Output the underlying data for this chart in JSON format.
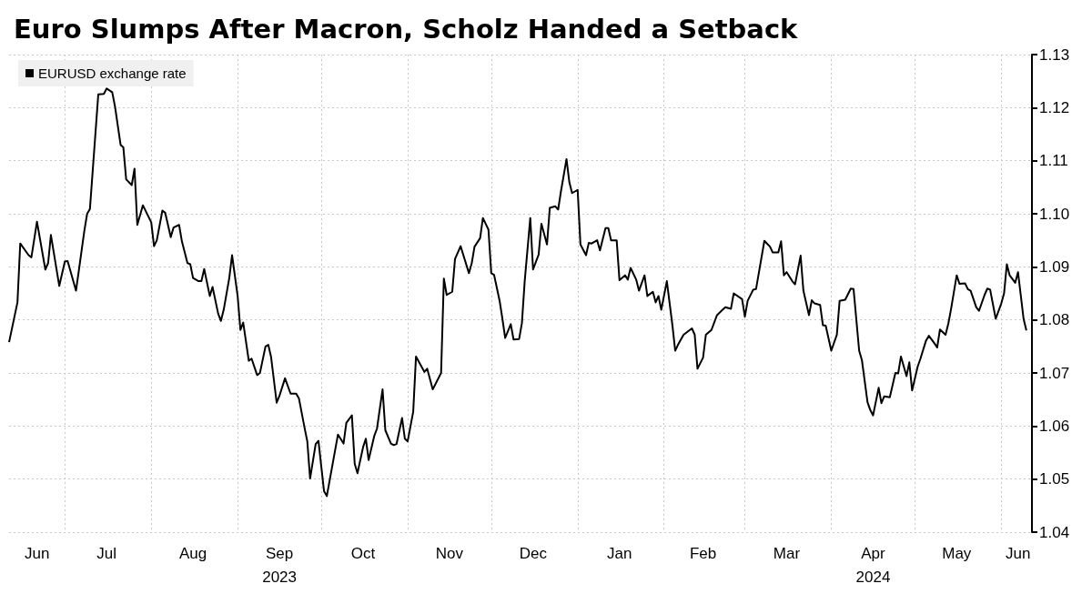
{
  "chart_data": {
    "type": "line",
    "title": "Euro Slumps After Macron, Scholz Handed a Setback",
    "x": [
      "2023-06-11",
      "2023-06-14",
      "2023-06-15",
      "2023-06-18",
      "2023-06-19",
      "2023-06-21",
      "2023-06-24",
      "2023-06-25",
      "2023-06-26",
      "2023-06-29",
      "2023-07-01",
      "2023-07-02",
      "2023-07-05",
      "2023-07-06",
      "2023-07-08",
      "2023-07-09",
      "2023-07-10",
      "2023-07-13",
      "2023-07-15",
      "2023-07-16",
      "2023-07-18",
      "2023-07-19",
      "2023-07-21",
      "2023-07-22",
      "2023-07-23",
      "2023-07-25",
      "2023-07-26",
      "2023-07-27",
      "2023-07-29",
      "2023-08-01",
      "2023-08-02",
      "2023-08-03",
      "2023-08-05",
      "2023-08-06",
      "2023-08-08",
      "2023-08-09",
      "2023-08-11",
      "2023-08-12",
      "2023-08-14",
      "2023-08-15",
      "2023-08-16",
      "2023-08-18",
      "2023-08-19",
      "2023-08-20",
      "2023-08-22",
      "2023-08-23",
      "2023-08-25",
      "2023-08-26",
      "2023-08-27",
      "2023-08-29",
      "2023-08-30",
      "2023-09-01",
      "2023-09-02",
      "2023-09-03",
      "2023-09-05",
      "2023-09-06",
      "2023-09-08",
      "2023-09-09",
      "2023-09-11",
      "2023-09-12",
      "2023-09-13",
      "2023-09-15",
      "2023-09-16",
      "2023-09-18",
      "2023-09-20",
      "2023-09-22",
      "2023-09-23",
      "2023-09-25",
      "2023-09-26",
      "2023-09-27",
      "2023-09-29",
      "2023-09-30",
      "2023-10-02",
      "2023-10-03",
      "2023-10-07",
      "2023-10-09",
      "2023-10-10",
      "2023-10-12",
      "2023-10-13",
      "2023-10-14",
      "2023-10-16",
      "2023-10-17",
      "2023-10-18",
      "2023-10-20",
      "2023-10-21",
      "2023-10-23",
      "2023-10-24",
      "2023-10-26",
      "2023-10-27",
      "2023-10-28",
      "2023-10-30",
      "2023-10-31",
      "2023-11-01",
      "2023-11-03",
      "2023-11-04",
      "2023-11-07",
      "2023-11-08",
      "2023-11-10",
      "2023-11-13",
      "2023-11-14",
      "2023-11-15",
      "2023-11-17",
      "2023-11-18",
      "2023-11-20",
      "2023-11-23",
      "2023-11-24",
      "2023-11-25",
      "2023-11-27",
      "2023-11-28",
      "2023-11-30",
      "2023-12-01",
      "2023-12-02",
      "2023-12-04",
      "2023-12-05",
      "2023-12-06",
      "2023-12-08",
      "2023-12-09",
      "2023-12-11",
      "2023-12-12",
      "2023-12-13",
      "2023-12-15",
      "2023-12-16",
      "2023-12-18",
      "2023-12-19",
      "2023-12-21",
      "2023-12-22",
      "2023-12-24",
      "2023-12-25",
      "2023-12-26",
      "2023-12-28",
      "2023-12-29",
      "2023-12-30",
      "2024-01-01",
      "2024-01-02",
      "2024-01-04",
      "2024-01-05",
      "2024-01-06",
      "2024-01-08",
      "2024-01-09",
      "2024-01-11",
      "2024-01-12",
      "2024-01-13",
      "2024-01-15",
      "2024-01-16",
      "2024-01-18",
      "2024-01-19",
      "2024-01-20",
      "2024-01-22",
      "2024-01-23",
      "2024-01-25",
      "2024-01-26",
      "2024-01-28",
      "2024-01-29",
      "2024-01-30",
      "2024-01-31",
      "2024-02-02",
      "2024-02-04",
      "2024-02-05",
      "2024-02-06",
      "2024-02-08",
      "2024-02-11",
      "2024-02-12",
      "2024-02-13",
      "2024-02-15",
      "2024-02-16",
      "2024-02-18",
      "2024-02-20",
      "2024-02-22",
      "2024-02-23",
      "2024-02-25",
      "2024-02-26",
      "2024-02-29",
      "2024-03-01",
      "2024-03-02",
      "2024-03-04",
      "2024-03-05",
      "2024-03-08",
      "2024-03-10",
      "2024-03-11",
      "2024-03-13",
      "2024-03-14",
      "2024-03-15",
      "2024-03-16",
      "2024-03-18",
      "2024-03-19",
      "2024-03-21",
      "2024-03-22",
      "2024-03-24",
      "2024-03-25",
      "2024-03-26",
      "2024-03-28",
      "2024-03-29",
      "2024-03-30",
      "2024-04-01",
      "2024-04-03",
      "2024-04-04",
      "2024-04-06",
      "2024-04-08",
      "2024-04-09",
      "2024-04-11",
      "2024-04-12",
      "2024-04-14",
      "2024-04-15",
      "2024-04-16",
      "2024-04-18",
      "2024-04-19",
      "2024-04-20",
      "2024-04-22",
      "2024-04-24",
      "2024-04-25",
      "2024-04-26",
      "2024-04-28",
      "2024-04-29",
      "2024-04-30",
      "2024-05-02",
      "2024-05-03",
      "2024-05-05",
      "2024-05-06",
      "2024-05-08",
      "2024-05-09",
      "2024-05-10",
      "2024-05-12",
      "2024-05-13",
      "2024-05-14",
      "2024-05-16",
      "2024-05-17",
      "2024-05-19",
      "2024-05-20",
      "2024-05-21",
      "2024-05-23",
      "2024-05-24",
      "2024-05-26",
      "2024-05-27",
      "2024-05-28",
      "2024-05-30",
      "2024-06-01",
      "2024-06-02",
      "2024-06-03",
      "2024-06-04",
      "2024-06-06",
      "2024-06-07",
      "2024-06-09",
      "2024-06-10"
    ],
    "series": [
      {
        "name": "EURUSD exchange rate",
        "color": "#000000",
        "values": [
          1.0758,
          1.0833,
          1.0944,
          1.0922,
          1.0918,
          1.0985,
          1.0895,
          1.0907,
          1.096,
          1.0864,
          1.091,
          1.0911,
          1.0855,
          1.0892,
          1.0968,
          1.1,
          1.1009,
          1.1225,
          1.1226,
          1.1236,
          1.1229,
          1.1202,
          1.113,
          1.1125,
          1.1065,
          1.1054,
          1.1085,
          1.0979,
          1.1016,
          1.0984,
          1.0939,
          1.095,
          1.1006,
          1.1002,
          1.0956,
          1.0974,
          1.0979,
          1.0948,
          1.0907,
          1.0905,
          1.0879,
          1.0873,
          1.0873,
          1.0896,
          1.0845,
          1.0862,
          1.0812,
          1.0798,
          1.0819,
          1.0879,
          1.0922,
          1.0845,
          1.0781,
          1.0795,
          1.0723,
          1.0727,
          1.0696,
          1.07,
          1.075,
          1.0753,
          1.073,
          1.0644,
          1.0657,
          1.069,
          1.0661,
          1.0661,
          1.0652,
          1.0597,
          1.0571,
          1.0501,
          1.0566,
          1.0572,
          1.0477,
          1.0468,
          1.0584,
          1.0567,
          1.0606,
          1.062,
          1.0529,
          1.0511,
          1.056,
          1.0576,
          1.0536,
          1.0581,
          1.0595,
          1.0669,
          1.0592,
          1.0567,
          1.0564,
          1.0566,
          1.0615,
          1.0576,
          1.0571,
          1.0627,
          1.0731,
          1.0702,
          1.0708,
          1.0669,
          1.07,
          1.0878,
          1.0847,
          1.0853,
          1.0915,
          1.0939,
          1.0888,
          1.0907,
          1.0938,
          1.0954,
          1.0992,
          1.097,
          1.0888,
          1.0885,
          1.0836,
          1.0802,
          1.0766,
          1.0792,
          1.0763,
          1.0764,
          1.0794,
          1.0873,
          1.0992,
          1.0895,
          1.0923,
          1.0981,
          1.0942,
          1.1011,
          1.1014,
          1.1008,
          1.1042,
          1.1103,
          1.106,
          1.1039,
          1.1045,
          1.0942,
          1.0922,
          1.0945,
          1.0944,
          1.095,
          1.0931,
          1.0973,
          1.0973,
          1.095,
          1.095,
          1.0875,
          1.0884,
          1.0876,
          1.0898,
          1.0876,
          1.0855,
          1.0884,
          1.0845,
          1.0853,
          1.0833,
          1.0845,
          1.0819,
          1.0873,
          1.079,
          1.0742,
          1.0753,
          1.0772,
          1.0784,
          1.0772,
          1.0708,
          1.0729,
          1.0772,
          1.0781,
          1.0809,
          1.0819,
          1.0824,
          1.0821,
          1.085,
          1.0839,
          1.0806,
          1.0836,
          1.0857,
          1.0858,
          1.0949,
          1.0938,
          1.0927,
          1.0927,
          1.0948,
          1.0884,
          1.089,
          1.0873,
          1.0867,
          1.0921,
          1.0855,
          1.0809,
          1.0837,
          1.0831,
          1.0828,
          1.079,
          1.0789,
          1.0742,
          1.0772,
          1.0836,
          1.0838,
          1.0859,
          1.0858,
          1.0742,
          1.0724,
          1.0645,
          1.063,
          1.062,
          1.0672,
          1.0643,
          1.0656,
          1.0654,
          1.07,
          1.0699,
          1.0731,
          1.0694,
          1.072,
          1.0667,
          1.0712,
          1.0727,
          1.0761,
          1.077,
          1.0756,
          1.0748,
          1.0782,
          1.0772,
          1.0793,
          1.0821,
          1.0884,
          1.0868,
          1.0869,
          1.0858,
          1.0855,
          1.0824,
          1.0817,
          1.0847,
          1.0859,
          1.0857,
          1.0802,
          1.0831,
          1.085,
          1.0905,
          1.0884,
          1.087,
          1.089,
          1.0802,
          1.078
        ]
      }
    ],
    "xlim": [
      "2023-06-11",
      "2024-06-12"
    ],
    "xticks": [
      {
        "value": "2023-06-21",
        "label": "Jun"
      },
      {
        "value": "2023-07-01",
        "label": null
      },
      {
        "value": "2023-07-16",
        "label": "Jul"
      },
      {
        "value": "2023-08-01",
        "label": null
      },
      {
        "value": "2023-08-16",
        "label": "Aug"
      },
      {
        "value": "2023-09-01",
        "label": null
      },
      {
        "value": "2023-09-16",
        "label": "Sep\n2023"
      },
      {
        "value": "2023-10-01",
        "label": null
      },
      {
        "value": "2023-10-16",
        "label": "Oct"
      },
      {
        "value": "2023-11-01",
        "label": null
      },
      {
        "value": "2023-11-16",
        "label": "Nov"
      },
      {
        "value": "2023-12-01",
        "label": null
      },
      {
        "value": "2023-12-16",
        "label": "Dec"
      },
      {
        "value": "2024-01-01",
        "label": null
      },
      {
        "value": "2024-01-16",
        "label": "Jan"
      },
      {
        "value": "2024-02-01",
        "label": null
      },
      {
        "value": "2024-02-15",
        "label": "Feb"
      },
      {
        "value": "2024-03-01",
        "label": null
      },
      {
        "value": "2024-03-16",
        "label": "Mar"
      },
      {
        "value": "2024-04-01",
        "label": null
      },
      {
        "value": "2024-04-16",
        "label": "Apr\n2024"
      },
      {
        "value": "2024-05-01",
        "label": null
      },
      {
        "value": "2024-05-16",
        "label": "May"
      },
      {
        "value": "2024-06-01",
        "label": null
      },
      {
        "value": "2024-06-07",
        "label": "Jun"
      }
    ],
    "ylim": [
      1.04,
      1.13
    ],
    "yticks": [
      1.04,
      1.05,
      1.06,
      1.07,
      1.08,
      1.09,
      {
        "value": 1.1,
        "label": "1.10"
      },
      1.11,
      1.12,
      1.13
    ],
    "grid": true,
    "legend": "top left",
    "marker": "none",
    "line_style": "solid"
  }
}
